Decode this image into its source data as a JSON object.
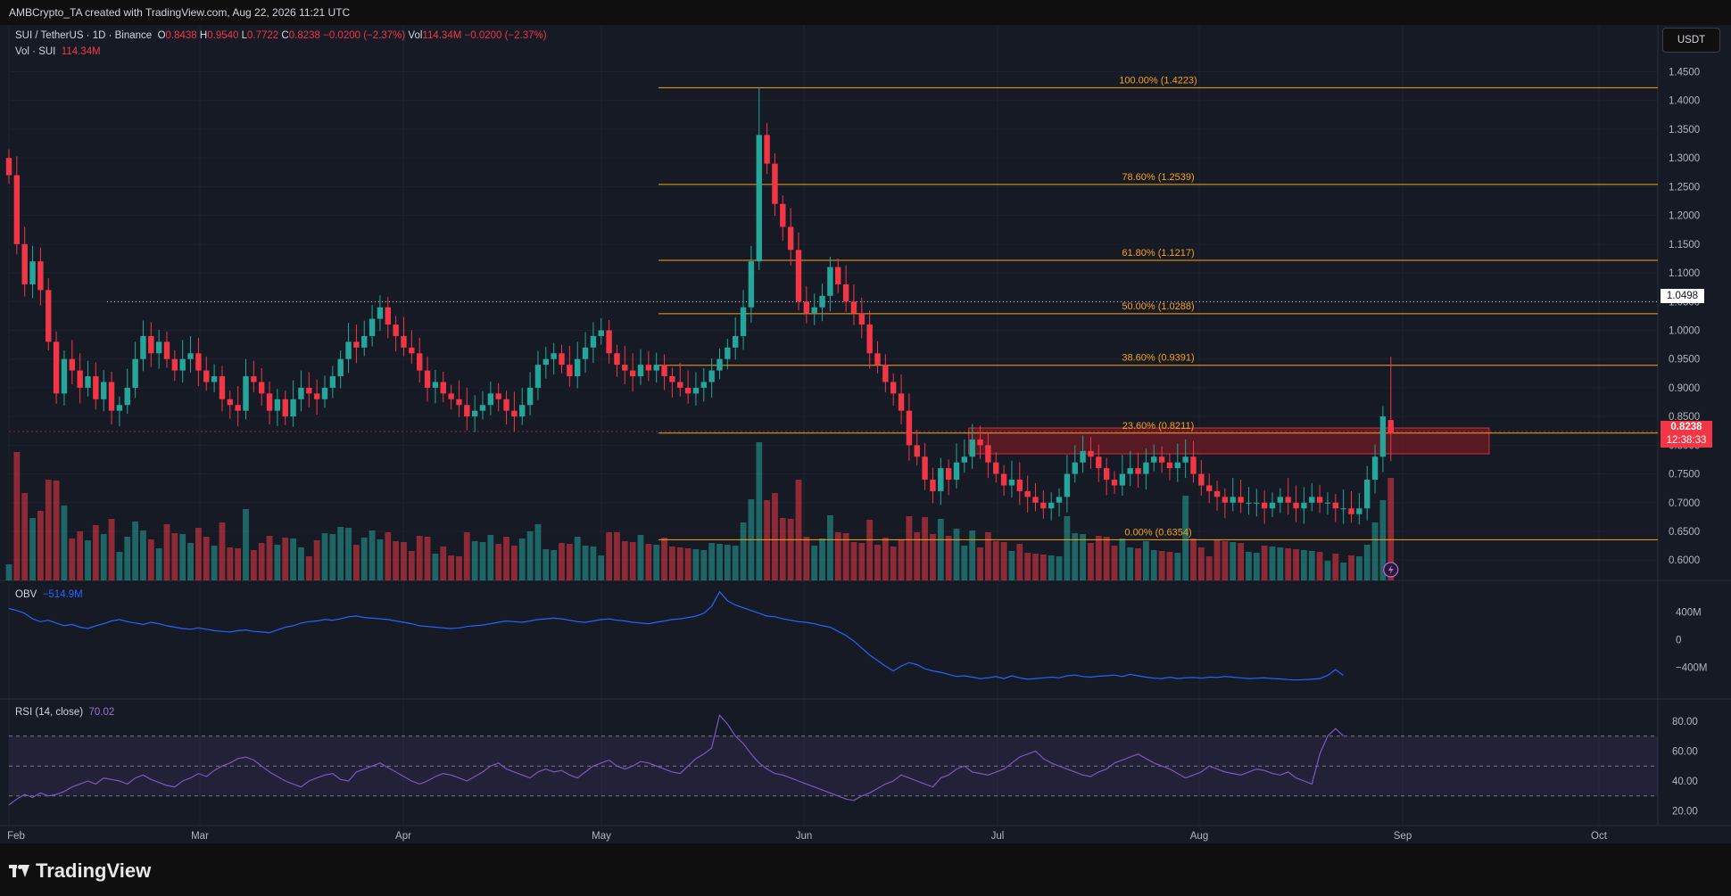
{
  "header": {
    "credit": "AMBCrypto_TA created with TradingView.com, Aug 22, 2026 11:21 UTC"
  },
  "legend": {
    "symbol": "SUI / TetherUS · 1D · Binance",
    "o_label": "O",
    "o": "0.8438",
    "h_label": "H",
    "h": "0.9540",
    "l_label": "L",
    "l": "0.7722",
    "c_label": "C",
    "c": "0.8238",
    "change": "−0.0200 (−2.37%)",
    "vol_label": "Vol",
    "vol": "114.34M",
    "vol_change": "−0.0200 (−2.37%)",
    "vol_series": "Vol · SUI",
    "vol_series_value": "114.34M",
    "obv_label": "OBV",
    "obv_value": "−514.9M",
    "rsi_label": "RSI (14, close)",
    "rsi_value": "70.02"
  },
  "currency_button": "USDT",
  "price_tags": {
    "dotted_level": "1.0498",
    "last_price": "0.8238",
    "countdown": "12:38:33"
  },
  "footer": {
    "brand": "TradingView"
  },
  "colors": {
    "background": "#161a25",
    "up": "#26a69a",
    "down": "#f23645",
    "fib": "#f7a21b",
    "obv": "#2962ff",
    "rsi": "#7e57c2",
    "zone": "#5c1a22"
  },
  "chart_data": {
    "type": "candlestick",
    "symbol": "SUI / TetherUS",
    "interval": "1D",
    "exchange": "Binance",
    "price_axis_ticks": [
      "1.4500",
      "1.4000",
      "1.3500",
      "1.3000",
      "1.2500",
      "1.2000",
      "1.1500",
      "1.1000",
      "1.0500",
      "1.0000",
      "0.9500",
      "0.9000",
      "0.8500",
      "0.8000",
      "0.7500",
      "0.7000",
      "0.6500",
      "0.6000"
    ],
    "ylim": [
      0.575,
      1.47
    ],
    "x_ticks": [
      "Feb",
      "Mar",
      "Apr",
      "May",
      "Jun",
      "Jul",
      "Aug",
      "Sep",
      "Oct"
    ],
    "fib_levels": [
      {
        "label": "100.00% (1.4223)",
        "value": 1.4223
      },
      {
        "label": "78.60% (1.2539)",
        "value": 1.2539
      },
      {
        "label": "61.80% (1.1217)",
        "value": 1.1217
      },
      {
        "label": "50.00% (1.0288)",
        "value": 1.0288
      },
      {
        "label": "38.60% (0.9391)",
        "value": 0.9391
      },
      {
        "label": "23.60% (0.8211)",
        "value": 0.8211
      },
      {
        "label": "0.00% (0.6354)",
        "value": 0.6354
      }
    ],
    "resistance_zone": {
      "from_day": 122,
      "to_day": 187,
      "low": 0.785,
      "high": 0.83
    },
    "dotted_level": 1.0498,
    "last_close": 0.8238,
    "close_series": [
      1.27,
      1.15,
      1.08,
      1.12,
      1.07,
      0.98,
      0.89,
      0.95,
      0.93,
      0.9,
      0.92,
      0.88,
      0.91,
      0.86,
      0.87,
      0.9,
      0.95,
      0.99,
      0.96,
      0.98,
      0.95,
      0.93,
      0.95,
      0.96,
      0.93,
      0.91,
      0.92,
      0.88,
      0.87,
      0.86,
      0.92,
      0.91,
      0.89,
      0.86,
      0.88,
      0.85,
      0.88,
      0.9,
      0.89,
      0.88,
      0.9,
      0.92,
      0.95,
      0.98,
      0.97,
      0.99,
      1.02,
      1.04,
      1.01,
      0.99,
      0.97,
      0.96,
      0.93,
      0.9,
      0.91,
      0.89,
      0.88,
      0.87,
      0.85,
      0.86,
      0.87,
      0.89,
      0.88,
      0.86,
      0.85,
      0.87,
      0.9,
      0.94,
      0.95,
      0.96,
      0.94,
      0.92,
      0.95,
      0.97,
      0.99,
      1.0,
      0.96,
      0.94,
      0.93,
      0.92,
      0.94,
      0.93,
      0.94,
      0.92,
      0.91,
      0.9,
      0.89,
      0.9,
      0.91,
      0.93,
      0.95,
      0.97,
      0.99,
      1.04,
      1.12,
      1.34,
      1.29,
      1.22,
      1.18,
      1.14,
      1.05,
      1.03,
      1.04,
      1.06,
      1.11,
      1.08,
      1.05,
      1.03,
      1.01,
      0.96,
      0.94,
      0.91,
      0.89,
      0.86,
      0.8,
      0.78,
      0.74,
      0.72,
      0.76,
      0.74,
      0.77,
      0.78,
      0.81,
      0.8,
      0.77,
      0.75,
      0.73,
      0.74,
      0.72,
      0.71,
      0.7,
      0.69,
      0.7,
      0.71,
      0.75,
      0.77,
      0.79,
      0.78,
      0.76,
      0.74,
      0.73,
      0.75,
      0.76,
      0.75,
      0.77,
      0.78,
      0.77,
      0.76,
      0.77,
      0.78,
      0.75,
      0.73,
      0.72,
      0.71,
      0.7,
      0.71,
      0.7,
      0.7,
      0.7,
      0.69,
      0.7,
      0.71,
      0.7,
      0.69,
      0.7,
      0.71,
      0.7,
      0.7,
      0.69,
      0.69,
      0.68,
      0.69,
      0.74,
      0.78,
      0.85,
      0.82
    ],
    "obv_axis_ticks": [
      "400M",
      "0",
      "−400M"
    ],
    "obv_ylim": [
      -700,
      700
    ],
    "obv_series": [
      450,
      420,
      380,
      300,
      260,
      280,
      240,
      200,
      220,
      180,
      160,
      200,
      230,
      270,
      290,
      260,
      240,
      220,
      250,
      230,
      200,
      180,
      160,
      150,
      170,
      150,
      130,
      120,
      110,
      130,
      140,
      120,
      110,
      100,
      140,
      180,
      200,
      240,
      260,
      270,
      290,
      280,
      300,
      330,
      340,
      320,
      310,
      300,
      290,
      270,
      250,
      230,
      200,
      190,
      180,
      170,
      160,
      170,
      190,
      200,
      210,
      230,
      250,
      270,
      260,
      250,
      270,
      290,
      300,
      310,
      300,
      280,
      260,
      250,
      270,
      290,
      300,
      280,
      270,
      250,
      240,
      230,
      250,
      270,
      290,
      300,
      320,
      340,
      380,
      480,
      690,
      560,
      500,
      460,
      420,
      380,
      340,
      330,
      300,
      280,
      260,
      250,
      230,
      200,
      180,
      120,
      60,
      -20,
      -120,
      -220,
      -300,
      -380,
      -450,
      -380,
      -330,
      -360,
      -420,
      -450,
      -470,
      -500,
      -530,
      -520,
      -540,
      -560,
      -550,
      -530,
      -560,
      -520,
      -550,
      -570,
      -560,
      -550,
      -540,
      -550,
      -520,
      -510,
      -530,
      -540,
      -525,
      -520,
      -510,
      -530,
      -500,
      -520,
      -540,
      -555,
      -560,
      -540,
      -560,
      -550,
      -545,
      -555,
      -540,
      -545,
      -530,
      -540,
      -550,
      -560,
      -555,
      -550,
      -560,
      -565,
      -575,
      -580,
      -575,
      -570,
      -560,
      -515,
      -430,
      -514.9
    ],
    "rsi_axis_ticks": [
      "80.00",
      "60.00",
      "40.00",
      "20.00"
    ],
    "rsi_ylim": [
      15,
      90
    ],
    "rsi_levels": [
      70,
      50,
      30
    ],
    "rsi_series": [
      24,
      28,
      31,
      29,
      32,
      30,
      31,
      33,
      36,
      38,
      40,
      38,
      42,
      41,
      40,
      38,
      42,
      44,
      41,
      39,
      37,
      36,
      40,
      42,
      45,
      43,
      47,
      50,
      52,
      55,
      56,
      54,
      50,
      46,
      43,
      40,
      38,
      36,
      40,
      42,
      44,
      45,
      41,
      40,
      46,
      48,
      50,
      52,
      49,
      46,
      43,
      40,
      38,
      40,
      43,
      45,
      44,
      42,
      40,
      43,
      46,
      50,
      52,
      48,
      46,
      44,
      42,
      46,
      48,
      46,
      47,
      44,
      42,
      46,
      50,
      52,
      54,
      50,
      48,
      50,
      53,
      52,
      50,
      48,
      46,
      45,
      50,
      55,
      58,
      62,
      84,
      78,
      70,
      65,
      58,
      52,
      48,
      45,
      44,
      42,
      40,
      38,
      36,
      34,
      32,
      30,
      28,
      27,
      30,
      32,
      35,
      38,
      40,
      44,
      42,
      40,
      38,
      36,
      42,
      44,
      48,
      50,
      46,
      45,
      44,
      46,
      48,
      52,
      56,
      58,
      60,
      55,
      52,
      50,
      48,
      46,
      44,
      43,
      46,
      48,
      52,
      54,
      56,
      58,
      55,
      52,
      50,
      48,
      45,
      42,
      44,
      46,
      50,
      48,
      46,
      45,
      44,
      46,
      48,
      47,
      45,
      44,
      46,
      42,
      40,
      38,
      58,
      70,
      75,
      70.02
    ]
  }
}
